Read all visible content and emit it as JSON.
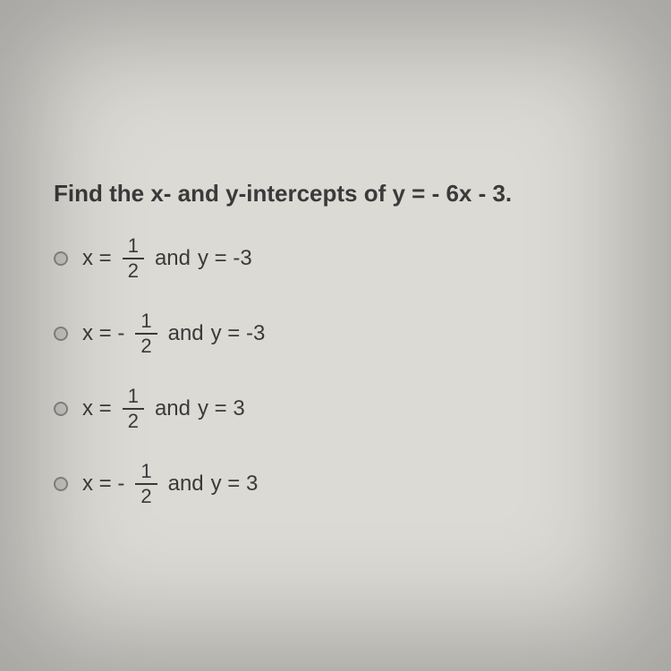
{
  "background_color": "#dcdad5",
  "text_color": "#3a3a3a",
  "question_fontsize": 26,
  "option_fontsize": 24,
  "question": "Find the x- and y-intercepts of y = - 6x - 3.",
  "fraction": {
    "numerator": "1",
    "denominator": "2"
  },
  "options": [
    {
      "x_prefix": "x =",
      "connector": "and",
      "y_text": "y = -3"
    },
    {
      "x_prefix": "x = -",
      "connector": "and",
      "y_text": "y = -3"
    },
    {
      "x_prefix": "x =",
      "connector": "and",
      "y_text": "y = 3"
    },
    {
      "x_prefix": "x = -",
      "connector": "and",
      "y_text": "y = 3"
    }
  ]
}
